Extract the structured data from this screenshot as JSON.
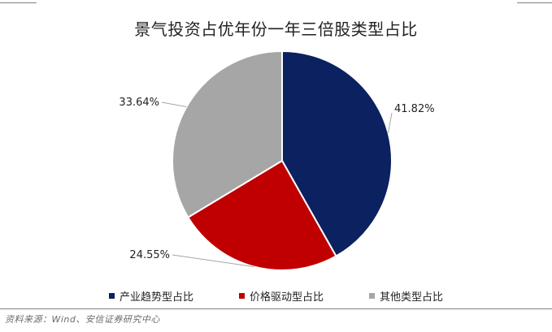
{
  "chart_data": {
    "type": "pie",
    "title": "景气投资占优年份一年三倍股类型占比",
    "slices": [
      {
        "name": "产业趋势型占比",
        "value": 41.82,
        "label": "41.82%",
        "color": "#0b2160"
      },
      {
        "name": "价格驱动型占比",
        "value": 24.55,
        "label": "24.55%",
        "color": "#c00000"
      },
      {
        "name": "其他类型占比",
        "value": 33.64,
        "label": "33.64%",
        "color": "#a6a6a6"
      }
    ],
    "legend_position": "bottom"
  },
  "source_note": "资料来源：Wind、安信证券研究中心"
}
